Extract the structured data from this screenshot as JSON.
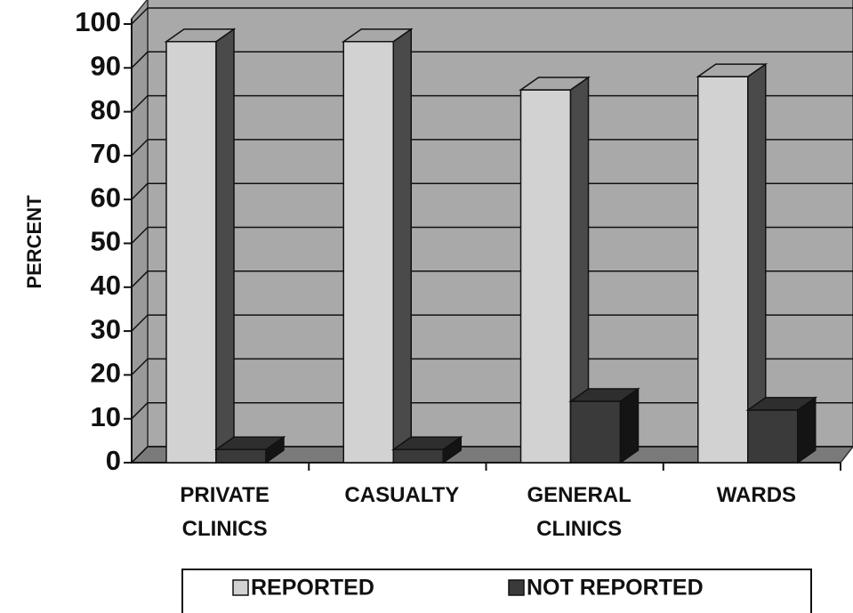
{
  "chart_data": {
    "type": "bar3d",
    "y_axis_label": "PERCENT",
    "categories": [
      "PRIVATE CLINICS",
      "CASUALTY",
      "GENERAL CLINICS",
      "WARDS"
    ],
    "series": [
      {
        "name": "REPORTED",
        "color": "#d2d2d2",
        "values": [
          96,
          96,
          85,
          88
        ]
      },
      {
        "name": "NOT REPORTED",
        "color": "#3a3a3a",
        "values": [
          3,
          3,
          14,
          12
        ]
      }
    ],
    "ylim": [
      0,
      100
    ],
    "yticks": [
      0,
      10,
      20,
      30,
      40,
      50,
      60,
      70,
      80,
      90,
      100
    ],
    "grid": true
  }
}
